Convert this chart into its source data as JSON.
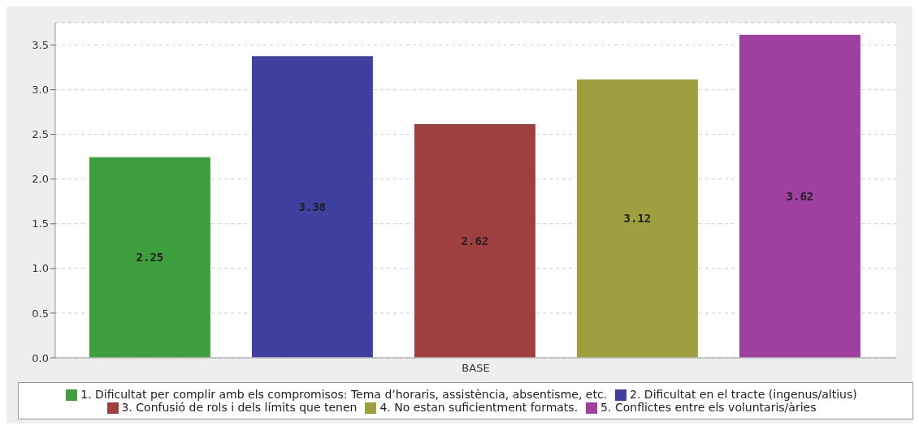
{
  "chart_data": {
    "type": "bar",
    "categories": [
      "BASE"
    ],
    "series": [
      {
        "name": "1. Dificultat per complir amb els compromisos: Tema d’horaris, assistència, absentisme, etc.",
        "color": "#3f9f3f",
        "values": [
          2.25
        ]
      },
      {
        "name": "2. Dificultat en el tracte (ingenus/altius)",
        "color": "#3f3f9f",
        "values": [
          3.38
        ]
      },
      {
        "name": "3. Confusió de rols i dels límits que tenen",
        "color": "#9f3f3f",
        "values": [
          2.62
        ]
      },
      {
        "name": "4. No estan suficientment formats.",
        "color": "#9f9f3f",
        "values": [
          3.12
        ]
      },
      {
        "name": "5. Conflictes entre els voluntaris/àries",
        "color": "#9f3f9f",
        "values": [
          3.62
        ]
      }
    ],
    "ylim": [
      0,
      3.75
    ],
    "yticks": [
      {
        "value": 0,
        "label": "0.0"
      },
      0.5,
      {
        "value": 1,
        "label": "1.0"
      },
      1.5,
      {
        "value": 2,
        "label": "2.0"
      },
      2.5,
      {
        "value": 3,
        "label": "3.0"
      },
      3.5
    ],
    "grid": "y",
    "legend": "bottom",
    "data_labels": true
  }
}
